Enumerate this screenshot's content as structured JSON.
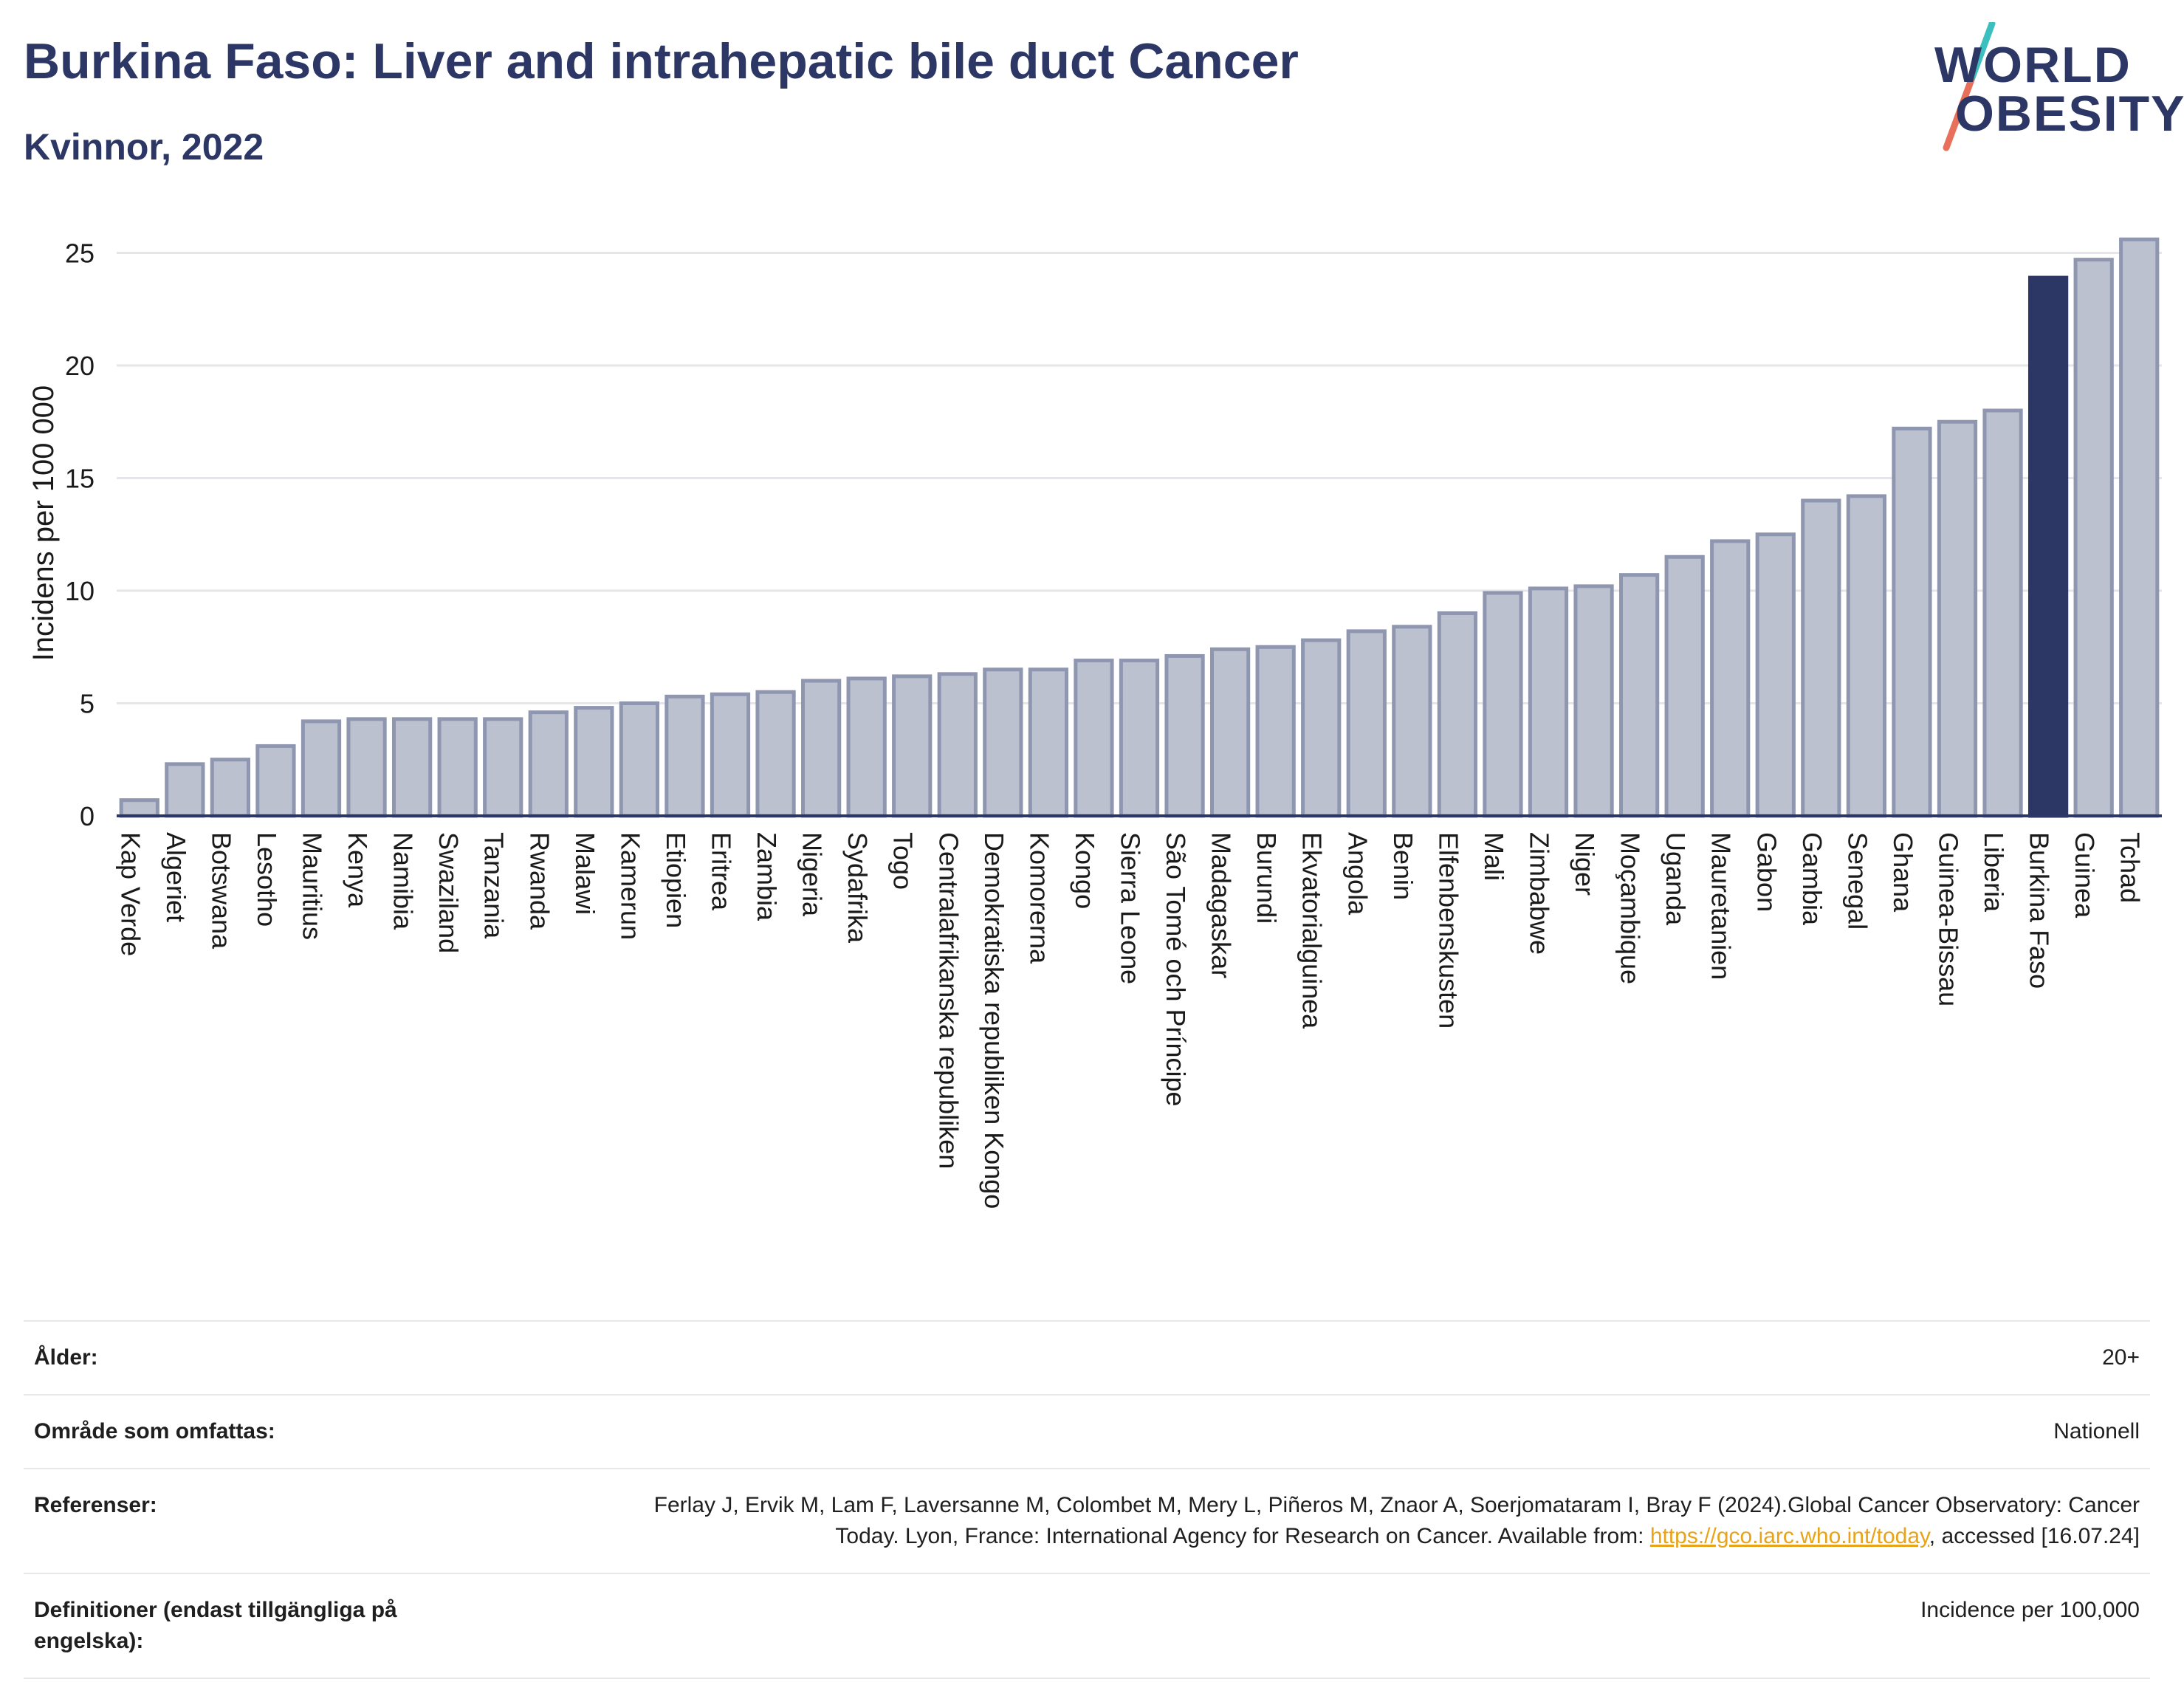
{
  "header": {
    "title": "Burkina Faso: Liver and intrahepatic bile duct Cancer",
    "subtitle": "Kvinnor, 2022"
  },
  "logo": {
    "line1": "WORLD",
    "line2": "OBESITY",
    "colors": {
      "text": "#2c3766",
      "slash_top": "#3cbfbf",
      "slash_bottom": "#e8705a"
    }
  },
  "colors": {
    "bar_fill": "#bcc1d0",
    "bar_stroke": "#8f96b0",
    "highlight": "#2c3766",
    "grid": "#e6e6ea",
    "axis": "#2c3766"
  },
  "chart_data": {
    "type": "bar",
    "ylabel": "Incidens per 100 000",
    "ylim": [
      0,
      26
    ],
    "yticks": [
      0,
      5,
      10,
      15,
      20,
      25
    ],
    "grid": true,
    "highlight": "Burkina Faso",
    "categories": [
      "Kap Verde",
      "Algeriet",
      "Botswana",
      "Lesotho",
      "Mauritius",
      "Kenya",
      "Namibia",
      "Swaziland",
      "Tanzania",
      "Rwanda",
      "Malawi",
      "Kamerun",
      "Etiopien",
      "Eritrea",
      "Zambia",
      "Nigeria",
      "Sydafrika",
      "Togo",
      "Centralafrikanska republiken",
      "Demokratiska republiken Kongo",
      "Komorerna",
      "Kongo",
      "Sierra Leone",
      "São Tomé och Príncipe",
      "Madagaskar",
      "Burundi",
      "Ekvatorialguinea",
      "Angola",
      "Benin",
      "Elfenbenskusten",
      "Mali",
      "Zimbabwe",
      "Niger",
      "Moçambique",
      "Uganda",
      "Mauretanien",
      "Gabon",
      "Gambia",
      "Senegal",
      "Ghana",
      "Guinea-Bissau",
      "Liberia",
      "Burkina Faso",
      "Guinea",
      "Tchad"
    ],
    "values": [
      0.7,
      2.3,
      2.5,
      3.1,
      4.2,
      4.3,
      4.3,
      4.3,
      4.3,
      4.6,
      4.8,
      5.0,
      5.3,
      5.4,
      5.5,
      6.0,
      6.1,
      6.2,
      6.3,
      6.5,
      6.5,
      6.9,
      6.9,
      7.1,
      7.4,
      7.5,
      7.8,
      8.2,
      8.4,
      9.0,
      9.9,
      10.1,
      10.2,
      10.7,
      11.5,
      12.2,
      12.5,
      14.0,
      14.2,
      17.2,
      17.5,
      18.0,
      23.9,
      24.7,
      25.6
    ]
  },
  "meta": {
    "age_label": "Ålder:",
    "age_value": "20+",
    "area_label": "Område som omfattas:",
    "area_value": "Nationell",
    "ref_label": "Referenser:",
    "ref_text_before": "Ferlay J, Ervik M, Lam F, Laversanne M, Colombet M, Mery L, Piñeros M, Znaor A, Soerjomataram I, Bray F (2024).Global Cancer Observatory: Cancer Today. Lyon, France: International Agency for Research on Cancer. Available from: ",
    "ref_link": "https://gco.iarc.who.int/today",
    "ref_text_after": ", accessed [16.07.24]",
    "def_label": "Definitioner (endast tillgängliga på engelska):",
    "def_value": "Incidence per 100,000"
  }
}
